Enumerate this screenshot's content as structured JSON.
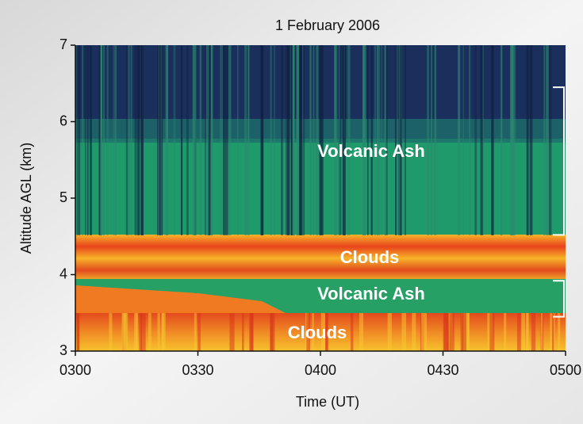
{
  "chart_data": {
    "type": "lidar-image",
    "title": "1 February 2006",
    "x_label": "Time (UT)",
    "y_label": "Altitude AGL (km)",
    "xlim": [
      3,
      5
    ],
    "xticks": [
      {
        "value": 3,
        "label": "0300"
      },
      {
        "value": 3.5,
        "label": "0330"
      },
      {
        "value": 4,
        "label": "0400"
      },
      {
        "value": 4.5,
        "label": "0430"
      },
      {
        "value": 5,
        "label": "0500"
      }
    ],
    "ylim": [
      3,
      7
    ],
    "yticks": [
      3,
      4,
      5,
      6,
      7
    ],
    "annotations": [
      {
        "text": "Volcanic Ash",
        "range": [
          4.52,
          6.45
        ]
      },
      {
        "text": "Clouds"
      },
      {
        "text": "Volcanic Ash",
        "range": [
          3.45,
          3.92
        ]
      },
      {
        "text": "Clouds"
      }
    ]
  }
}
